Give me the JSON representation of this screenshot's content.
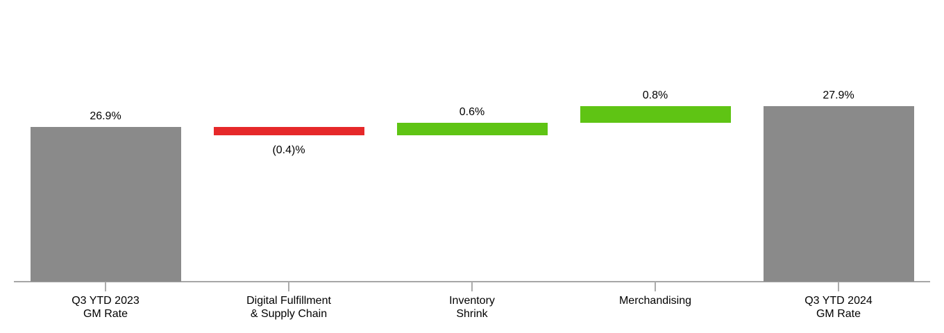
{
  "chart_data": {
    "type": "bar",
    "subtype": "waterfall",
    "title": "",
    "xlabel": "",
    "ylabel": "",
    "legend": "none",
    "gridlines": false,
    "y_axis_labels_visible": false,
    "categories": [
      "Q3 YTD 2023 GM Rate",
      "Digital Fulfillment & Supply Chain",
      "Inventory Shrink",
      "Merchandising",
      "Q3 YTD 2024 GM Rate"
    ],
    "values": [
      26.9,
      -0.4,
      0.6,
      0.8,
      27.9
    ],
    "cumulative": [
      26.9,
      26.5,
      27.1,
      27.9,
      27.9
    ],
    "items": [
      {
        "label_lines": [
          "Q3 YTD 2023",
          "GM Rate"
        ],
        "value": 26.9,
        "display": "26.9%",
        "role": "total",
        "color": "#8a8a8a"
      },
      {
        "label_lines": [
          "Digital Fulfillment",
          "& Supply Chain"
        ],
        "value": -0.4,
        "display": "(0.4)%",
        "role": "decrease",
        "color": "#e6282a"
      },
      {
        "label_lines": [
          "Inventory",
          "Shrink"
        ],
        "value": 0.6,
        "display": "0.6%",
        "role": "increase",
        "color": "#5fc414"
      },
      {
        "label_lines": [
          "Merchandising"
        ],
        "value": 0.8,
        "display": "0.8%",
        "role": "increase",
        "color": "#5fc414"
      },
      {
        "label_lines": [
          "Q3 YTD 2024",
          "GM Rate"
        ],
        "value": 27.9,
        "display": "27.9%",
        "role": "total",
        "color": "#8a8a8a"
      }
    ],
    "colors": {
      "total": "#8a8a8a",
      "increase": "#5fc414",
      "decrease": "#e6282a",
      "axis": "#a6a6a6",
      "label_text": "#000000"
    }
  }
}
